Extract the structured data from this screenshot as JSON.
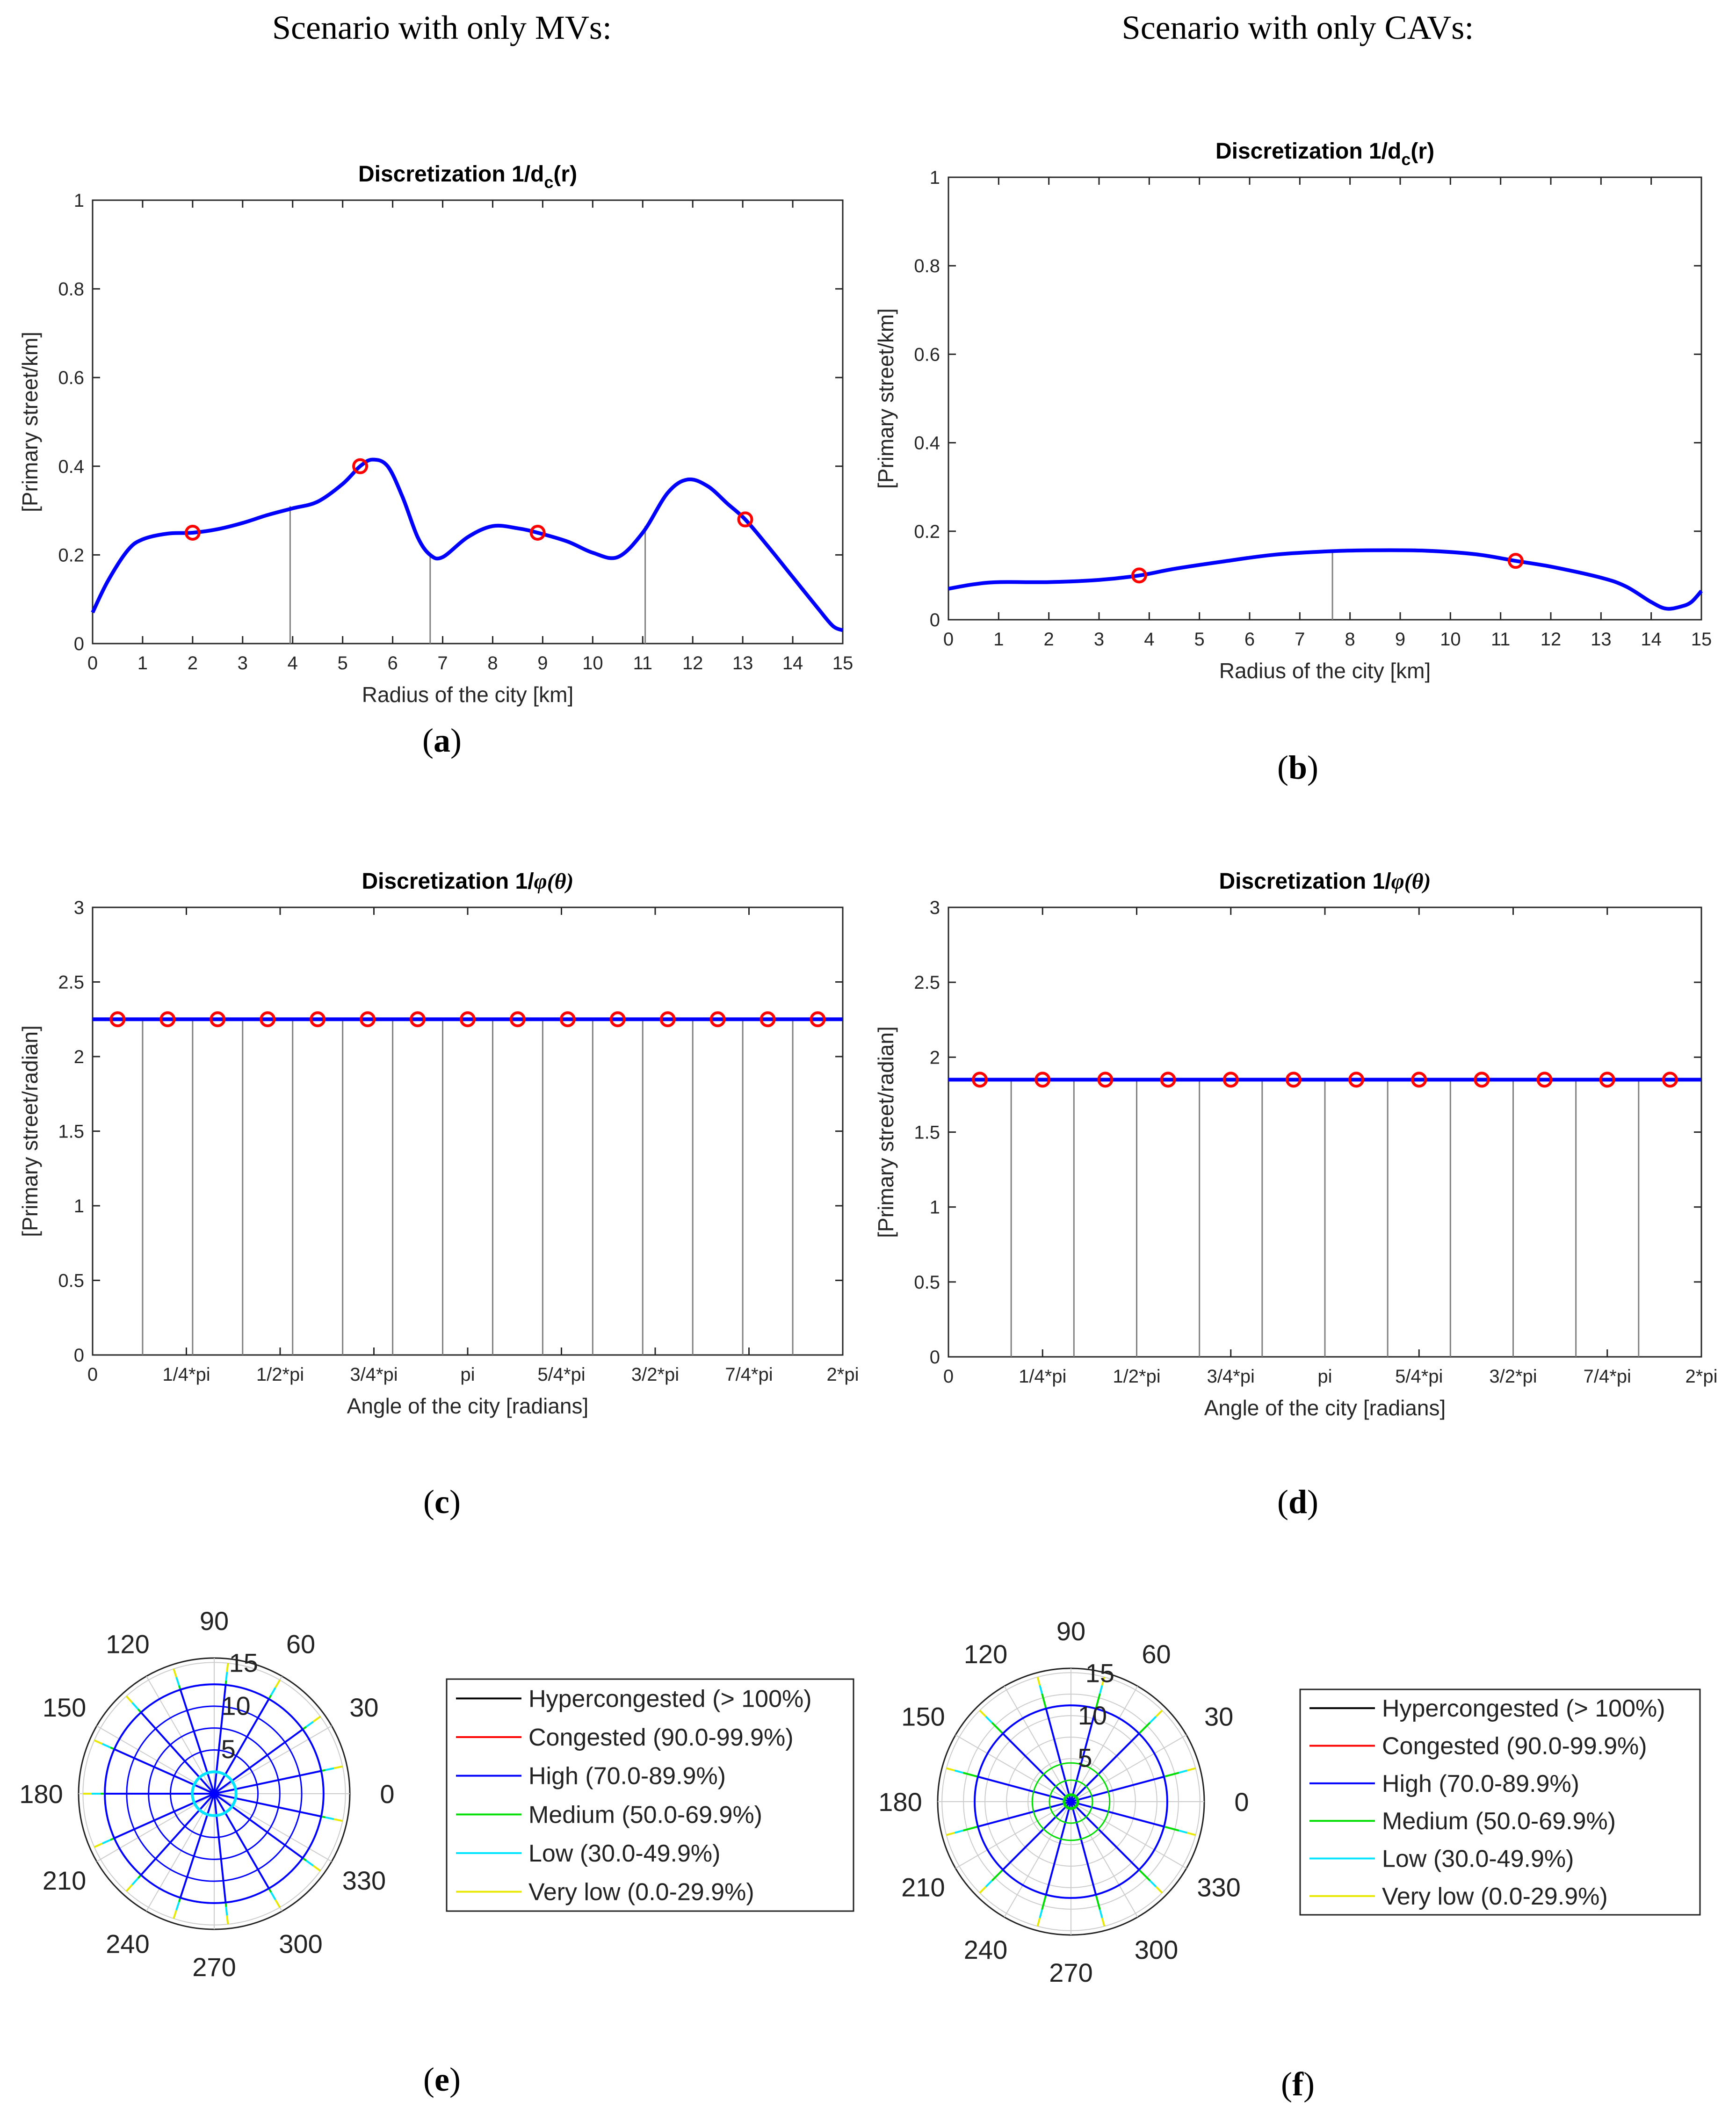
{
  "figure": {
    "scenario_left": "Scenario with only MVs:",
    "scenario_right": "Scenario with only CAVs:",
    "panel_labels": [
      "a",
      "b",
      "c",
      "d",
      "e",
      "f"
    ]
  },
  "colors": {
    "curve": "#0000ff",
    "marker": "#ff0000",
    "divider": "#808080",
    "axis": "#262626",
    "hypercongested": "#000000",
    "congested": "#ff0000",
    "high": "#0000ff",
    "medium": "#00dd00",
    "low": "#00e5ff",
    "very_low": "#e8e800",
    "polar_grid": "#cccccc"
  },
  "legend": {
    "entries": [
      {
        "label": "Hypercongested (> 100%)",
        "color_key": "hypercongested"
      },
      {
        "label": "Congested (90.0-99.9%)",
        "color_key": "congested"
      },
      {
        "label": "High (70.0-89.9%)",
        "color_key": "high"
      },
      {
        "label": "Medium (50.0-69.9%)",
        "color_key": "medium"
      },
      {
        "label": "Low (30.0-49.9%)",
        "color_key": "low"
      },
      {
        "label": "Very low (0.0-29.9%)",
        "color_key": "very_low"
      }
    ]
  },
  "chart_data": [
    {
      "id": "a",
      "type": "line",
      "title_main": "Discretization 1/d",
      "title_sub": "c",
      "title_tail": "(r)",
      "xlabel": "Radius of the city [km]",
      "ylabel": "[Primary street/km]",
      "xlim": [
        0,
        15
      ],
      "ylim": [
        0,
        1
      ],
      "xticks": [
        0,
        1,
        2,
        3,
        4,
        5,
        6,
        7,
        8,
        9,
        10,
        11,
        12,
        13,
        14,
        15
      ],
      "xtick_labels": [
        "0",
        "1",
        "2",
        "3",
        "4",
        "5",
        "6",
        "7",
        "8",
        "9",
        "10",
        "11",
        "12",
        "13",
        "14",
        "15"
      ],
      "yticks": [
        0,
        0.2,
        0.4,
        0.6,
        0.8,
        1
      ],
      "ytick_labels": [
        "0",
        "0.2",
        "0.4",
        "0.6",
        "0.8",
        "1"
      ],
      "x": [
        0,
        0.3,
        0.7,
        1.0,
        1.5,
        2.0,
        2.5,
        3.0,
        3.5,
        4.0,
        4.5,
        5.0,
        5.35,
        5.6,
        5.9,
        6.2,
        6.5,
        6.75,
        7.0,
        7.5,
        8.0,
        8.5,
        8.9,
        9.5,
        10.0,
        10.5,
        11.0,
        11.5,
        11.9,
        12.3,
        12.7,
        13.05,
        13.5,
        14.0,
        14.5,
        14.8,
        15.0
      ],
      "y": [
        0.07,
        0.14,
        0.21,
        0.235,
        0.248,
        0.25,
        0.258,
        0.272,
        0.29,
        0.305,
        0.32,
        0.36,
        0.4,
        0.415,
        0.4,
        0.33,
        0.24,
        0.2,
        0.195,
        0.24,
        0.265,
        0.26,
        0.25,
        0.23,
        0.205,
        0.195,
        0.25,
        0.34,
        0.37,
        0.355,
        0.315,
        0.28,
        0.22,
        0.15,
        0.08,
        0.04,
        0.03
      ],
      "markers": [
        {
          "x": 2.0,
          "y": 0.25
        },
        {
          "x": 5.35,
          "y": 0.4
        },
        {
          "x": 8.9,
          "y": 0.25
        },
        {
          "x": 13.05,
          "y": 0.28
        }
      ],
      "dividers": [
        {
          "x": 3.95,
          "y": 0.31
        },
        {
          "x": 6.75,
          "y": 0.2
        },
        {
          "x": 11.05,
          "y": 0.265
        }
      ]
    },
    {
      "id": "b",
      "type": "line",
      "title_main": "Discretization 1/d",
      "title_sub": "c",
      "title_tail": "(r)",
      "xlabel": "Radius of the city [km]",
      "ylabel": "[Primary street/km]",
      "xlim": [
        0,
        15
      ],
      "ylim": [
        0,
        1
      ],
      "xticks": [
        0,
        1,
        2,
        3,
        4,
        5,
        6,
        7,
        8,
        9,
        10,
        11,
        12,
        13,
        14,
        15
      ],
      "xtick_labels": [
        "0",
        "1",
        "2",
        "3",
        "4",
        "5",
        "6",
        "7",
        "8",
        "9",
        "10",
        "11",
        "12",
        "13",
        "14",
        "15"
      ],
      "yticks": [
        0,
        0.2,
        0.4,
        0.6,
        0.8,
        1
      ],
      "ytick_labels": [
        "0",
        "0.2",
        "0.4",
        "0.6",
        "0.8",
        "1"
      ],
      "x": [
        0,
        0.5,
        1.0,
        2.0,
        3.0,
        3.8,
        4.5,
        5.5,
        6.5,
        7.65,
        8.5,
        9.5,
        10.5,
        11.3,
        12.0,
        13.0,
        13.5,
        14.0,
        14.3,
        14.6,
        14.8,
        15.0
      ],
      "y": [
        0.07,
        0.08,
        0.085,
        0.085,
        0.09,
        0.1,
        0.115,
        0.132,
        0.147,
        0.155,
        0.157,
        0.156,
        0.148,
        0.133,
        0.12,
        0.095,
        0.075,
        0.04,
        0.025,
        0.03,
        0.04,
        0.065
      ],
      "markers": [
        {
          "x": 3.8,
          "y": 0.1
        },
        {
          "x": 11.3,
          "y": 0.133
        }
      ],
      "dividers": [
        {
          "x": 7.65,
          "y": 0.155
        }
      ]
    },
    {
      "id": "c",
      "type": "line",
      "title_main": "Discretization 1/",
      "title_sub": "",
      "title_tail": "(θ)",
      "xlabel": "Angle of the city [radians]",
      "ylabel": "[Primary street/radian]",
      "xlim": [
        0,
        6.2832
      ],
      "ylim": [
        0,
        3
      ],
      "xticks": [
        0,
        0.7854,
        1.5708,
        2.3562,
        3.1416,
        3.927,
        4.7124,
        5.4978,
        6.2832
      ],
      "xtick_labels": [
        "0",
        "1/4*pi",
        "1/2*pi",
        "3/4*pi",
        "pi",
        "5/4*pi",
        "3/2*pi",
        "7/4*pi",
        "2*pi"
      ],
      "yticks": [
        0,
        0.5,
        1,
        1.5,
        2,
        2.5,
        3
      ],
      "ytick_labels": [
        "0",
        "0.5",
        "1",
        "1.5",
        "2",
        "2.5",
        "3"
      ],
      "x": [
        0,
        6.2832
      ],
      "y": [
        2.25,
        2.25
      ],
      "marker_count": 15,
      "marker_y": 2.25,
      "divider_count": 14
    },
    {
      "id": "d",
      "type": "line",
      "title_main": "Discretization 1/",
      "title_sub": "",
      "title_tail": "(θ)",
      "xlabel": "Angle of the city [radians]",
      "ylabel": "[Primary street/radian]",
      "xlim": [
        0,
        6.2832
      ],
      "ylim": [
        0,
        3
      ],
      "xticks": [
        0,
        0.7854,
        1.5708,
        2.3562,
        3.1416,
        3.927,
        4.7124,
        5.4978,
        6.2832
      ],
      "xtick_labels": [
        "0",
        "1/4*pi",
        "1/2*pi",
        "3/4*pi",
        "pi",
        "5/4*pi",
        "3/2*pi",
        "7/4*pi",
        "2*pi"
      ],
      "yticks": [
        0,
        0.5,
        1,
        1.5,
        2,
        2.5,
        3
      ],
      "ytick_labels": [
        "0",
        "0.5",
        "1",
        "1.5",
        "2",
        "2.5",
        "3"
      ],
      "x": [
        0,
        6.2832
      ],
      "y": [
        1.85,
        1.85
      ],
      "marker_count": 12,
      "marker_y": 1.85,
      "divider_count": 11
    },
    {
      "id": "e",
      "type": "polar",
      "angle_labels": [
        "0",
        "30",
        "60",
        "90",
        "120",
        "150",
        "180",
        "210",
        "240",
        "270",
        "300",
        "330"
      ],
      "radial_ticks": [
        5,
        10,
        15
      ],
      "radial_tick_labels": [
        "5",
        "10",
        "15"
      ],
      "rmax": 15.5,
      "spokes": 15,
      "ring_radius": 12.5,
      "inner_ring_radius": 2.5
    },
    {
      "id": "f",
      "type": "polar",
      "angle_labels": [
        "0",
        "30",
        "60",
        "90",
        "120",
        "150",
        "180",
        "210",
        "240",
        "270",
        "300",
        "330"
      ],
      "radial_ticks": [
        5,
        10,
        15
      ],
      "radial_tick_labels": [
        "5",
        "10",
        "15"
      ],
      "rmax": 15.5,
      "spokes": 12,
      "ring_radius": 11.2,
      "inner_ring_radius": 0.8
    }
  ]
}
